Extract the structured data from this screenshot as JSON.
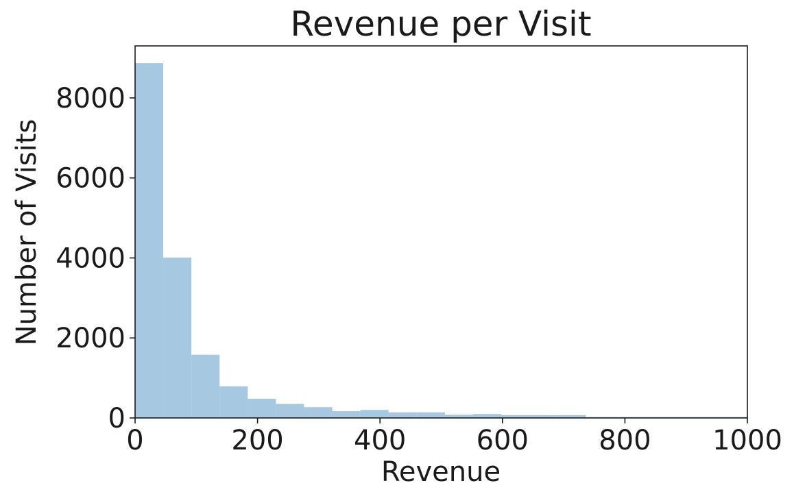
{
  "chart_data": {
    "type": "bar",
    "title": "Revenue per Visit",
    "xlabel": "Revenue",
    "ylabel": "Number of Visits",
    "xlim": [
      0,
      1000
    ],
    "ylim": [
      0,
      9300
    ],
    "grid": false,
    "bar_color": "#a6c8e0",
    "xticks": [
      0,
      200,
      400,
      600,
      800,
      1000
    ],
    "xtick_labels": [
      "0",
      "200",
      "400",
      "600",
      "800",
      "1000"
    ],
    "yticks": [
      0,
      2000,
      4000,
      6000,
      8000
    ],
    "ytick_labels": [
      "0",
      "2000",
      "4000",
      "6000",
      "8000"
    ],
    "bins": [
      {
        "x0": 0,
        "x1": 46,
        "value": 8870
      },
      {
        "x0": 46,
        "x1": 92,
        "value": 4010
      },
      {
        "x0": 92,
        "x1": 138,
        "value": 1580
      },
      {
        "x0": 138,
        "x1": 184,
        "value": 790
      },
      {
        "x0": 184,
        "x1": 230,
        "value": 480
      },
      {
        "x0": 230,
        "x1": 276,
        "value": 350
      },
      {
        "x0": 276,
        "x1": 322,
        "value": 270
      },
      {
        "x0": 322,
        "x1": 368,
        "value": 170
      },
      {
        "x0": 368,
        "x1": 414,
        "value": 200
      },
      {
        "x0": 414,
        "x1": 460,
        "value": 140
      },
      {
        "x0": 460,
        "x1": 506,
        "value": 140
      },
      {
        "x0": 506,
        "x1": 552,
        "value": 80
      },
      {
        "x0": 552,
        "x1": 598,
        "value": 100
      },
      {
        "x0": 598,
        "x1": 644,
        "value": 70
      },
      {
        "x0": 644,
        "x1": 690,
        "value": 70
      },
      {
        "x0": 690,
        "x1": 736,
        "value": 70
      },
      {
        "x0": 736,
        "x1": 782,
        "value": 25
      },
      {
        "x0": 782,
        "x1": 828,
        "value": 25
      },
      {
        "x0": 828,
        "x1": 874,
        "value": 25
      },
      {
        "x0": 874,
        "x1": 920,
        "value": 25
      },
      {
        "x0": 920,
        "x1": 966,
        "value": 25
      },
      {
        "x0": 966,
        "x1": 1000,
        "value": 25
      }
    ]
  }
}
